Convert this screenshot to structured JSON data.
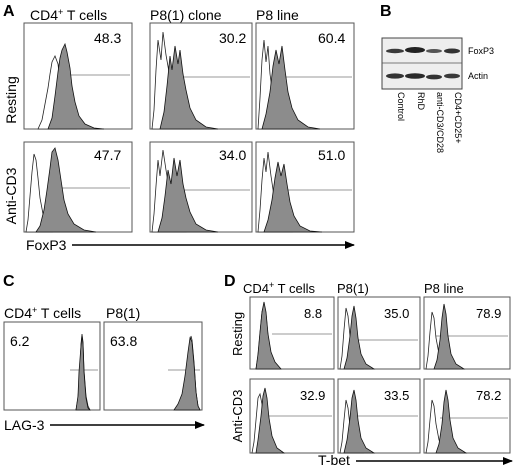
{
  "panels": {
    "A": {
      "label": "A",
      "columns": [
        "CD4",
        "P8(1) clone",
        "P8 line"
      ],
      "column_superscripts": [
        "+",
        "",
        ""
      ],
      "column_suffixes": [
        " T cells",
        "",
        ""
      ],
      "rows": [
        "Resting",
        "Anti-CD3"
      ],
      "values": [
        [
          "48.3",
          "30.2",
          "60.4"
        ],
        [
          "47.7",
          "34.0",
          "51.0"
        ]
      ],
      "x_axis_label": "FoxP3"
    },
    "B": {
      "label": "B",
      "bands": [
        "FoxP3",
        "Actin"
      ],
      "lanes": [
        "Control",
        "RhD",
        "anti-CD3/CD28",
        "CD4+CD25+"
      ]
    },
    "C": {
      "label": "C",
      "columns": [
        "CD4",
        "P8(1)"
      ],
      "column_superscripts": [
        "+",
        ""
      ],
      "column_suffixes": [
        " T cells",
        ""
      ],
      "values": [
        "6.2",
        "63.8"
      ],
      "x_axis_label": "LAG-3"
    },
    "D": {
      "label": "D",
      "columns": [
        "CD4",
        "P8(1)",
        "P8 line"
      ],
      "column_superscripts": [
        "+",
        "",
        ""
      ],
      "column_suffixes": [
        " T cells",
        "",
        ""
      ],
      "rows": [
        "Resting",
        "Anti-CD3"
      ],
      "values": [
        [
          "8.8",
          "35.0",
          "78.9"
        ],
        [
          "32.9",
          "33.5",
          "78.2"
        ]
      ],
      "x_axis_label": "T-bet"
    }
  }
}
